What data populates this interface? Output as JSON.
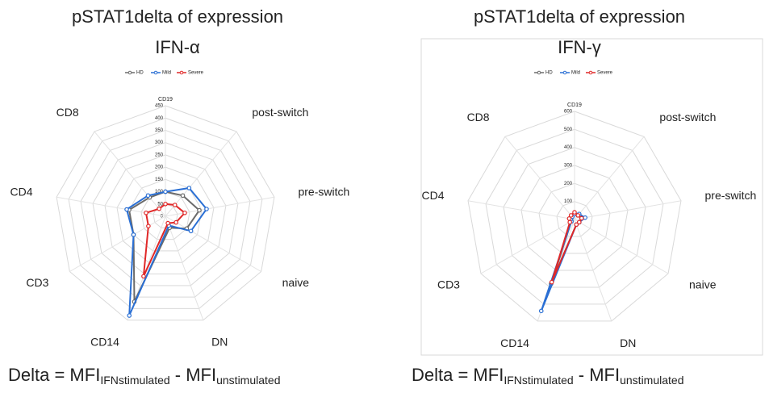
{
  "chart_data": [
    {
      "type": "radar",
      "title": "pSTAT1delta of expression",
      "subtitle": "IFN-α",
      "categories": [
        "CD19",
        "post-switch",
        "pre-switch",
        "naive",
        "DN",
        "CD14",
        "CD3",
        "CD4",
        "CD8"
      ],
      "series": [
        {
          "name": "HD",
          "color": "#6b6b6b",
          "values": [
            100,
            110,
            140,
            100,
            50,
            370,
            150,
            150,
            100
          ]
        },
        {
          "name": "Mild",
          "color": "#2a6fd4",
          "values": [
            100,
            150,
            170,
            120,
            40,
            430,
            150,
            160,
            110
          ]
        },
        {
          "name": "Severe",
          "color": "#e02828",
          "values": [
            50,
            60,
            80,
            50,
            30,
            260,
            80,
            80,
            40
          ]
        }
      ],
      "ylim": [
        0,
        450
      ],
      "yticks": [
        0,
        50,
        100,
        150,
        200,
        250,
        300,
        350,
        400,
        450
      ],
      "grid": true,
      "legend": "top",
      "caption": {
        "prefix": "Delta = MFI",
        "sub1": "IFNstimulated",
        "middle": " - MFI",
        "sub2": "unstimulated"
      }
    },
    {
      "type": "radar",
      "title": "pSTAT1delta of expression",
      "subtitle": "IFN-γ",
      "categories": [
        "CD19",
        "post-switch",
        "pre-switch",
        "naive",
        "DN",
        "CD14",
        "CD3",
        "CD4",
        "CD8"
      ],
      "series": [
        {
          "name": "HD",
          "color": "#6b6b6b",
          "values": [
            30,
            30,
            40,
            30,
            30,
            380,
            20,
            20,
            20
          ]
        },
        {
          "name": "Mild",
          "color": "#2a6fd4",
          "values": [
            30,
            40,
            60,
            30,
            30,
            540,
            20,
            20,
            20
          ]
        },
        {
          "name": "Severe",
          "color": "#e02828",
          "values": [
            40,
            30,
            40,
            30,
            30,
            370,
            30,
            30,
            30
          ]
        }
      ],
      "ylim": [
        0,
        600
      ],
      "yticks": [
        0,
        100,
        200,
        300,
        400,
        500,
        600
      ],
      "grid": true,
      "legend": "top",
      "caption": {
        "prefix": "Delta = MFI",
        "sub1": "IFNstimulated",
        "middle": " - MFI",
        "sub2": "unstimulated"
      }
    }
  ]
}
